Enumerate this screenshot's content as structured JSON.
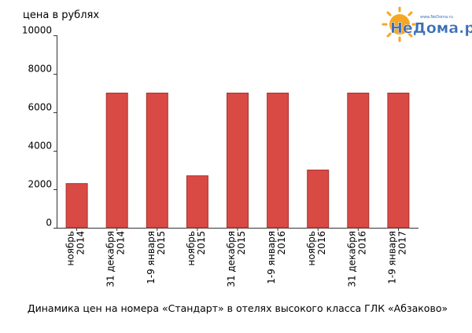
{
  "chart_data": {
    "type": "bar",
    "ylabel": "цена в рублях",
    "title": "Динамика цен на номера «Стандарт» в отелях высокого класса ГЛК «Абзаково»",
    "ylim": [
      0,
      10000
    ],
    "yticks": [
      0,
      2000,
      4000,
      6000,
      8000,
      10000
    ],
    "categories": [
      [
        "ноябрь",
        "2014"
      ],
      [
        "31 декабря",
        "2014"
      ],
      [
        "1-9 января",
        "2015"
      ],
      [
        "ноябрь",
        "2015"
      ],
      [
        "31 декабря",
        "2015"
      ],
      [
        "1-9 января",
        "2016"
      ],
      [
        "ноябрь",
        "2016"
      ],
      [
        "31 декабря",
        "2016"
      ],
      [
        "1-9 января",
        "2017"
      ]
    ],
    "values": [
      2300,
      7000,
      7000,
      2700,
      7000,
      7000,
      3000,
      7000,
      7000
    ],
    "bar_color": "#d94a45",
    "bar_stroke": "#a8302c",
    "grid": false
  },
  "logo": {
    "text": "НеДома.ру",
    "small_text": "www.NeDoma.ru",
    "sun_color": "#f5a623",
    "text_color": "#3b6fb6"
  }
}
